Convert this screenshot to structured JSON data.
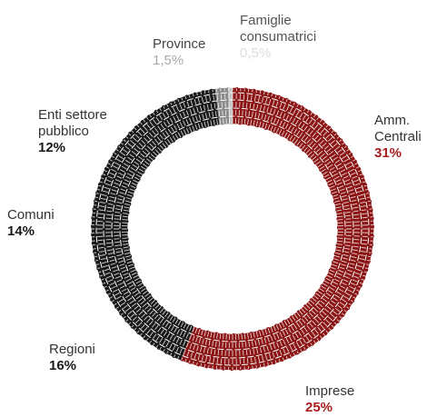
{
  "chart_data": {
    "type": "pie",
    "title": "",
    "series": [
      {
        "name": "",
        "values": [
          31,
          25,
          16,
          14,
          12,
          1.5,
          0.5
        ]
      }
    ],
    "slices": [
      {
        "label": "Amm.\nCentrali",
        "label_lines": [
          "Amm.",
          "Centrali"
        ],
        "value": 31,
        "value_label": "31%",
        "color": "#8b1414"
      },
      {
        "label": "Imprese",
        "label_lines": [
          "Imprese"
        ],
        "value": 25,
        "value_label": "25%",
        "color": "#8b1414"
      },
      {
        "label": "Regioni",
        "label_lines": [
          "Regioni"
        ],
        "value": 16,
        "value_label": "16%",
        "color": "#1a1a1a"
      },
      {
        "label": "Comuni",
        "label_lines": [
          "Comuni"
        ],
        "value": 14,
        "value_label": "14%",
        "color": "#1a1a1a"
      },
      {
        "label": "Enti settore\npubblico",
        "label_lines": [
          "Enti settore",
          "pubblico"
        ],
        "value": 12,
        "value_label": "12%",
        "color": "#1a1a1a"
      },
      {
        "label": "Province",
        "label_lines": [
          "Province"
        ],
        "value": 1.5,
        "value_label": "1,5%",
        "color": "#8a8a8a"
      },
      {
        "label": "Famiglie\nconsumatrici",
        "label_lines": [
          "Famiglie",
          "consumatrici"
        ],
        "value": 0.5,
        "value_label": "0,5%",
        "color": "#c4c4c4"
      }
    ],
    "legend": "none",
    "grid": false
  },
  "colors": {
    "red": "#8b1414",
    "dark": "#1a1a1a",
    "red_text": "#a81d1d"
  }
}
